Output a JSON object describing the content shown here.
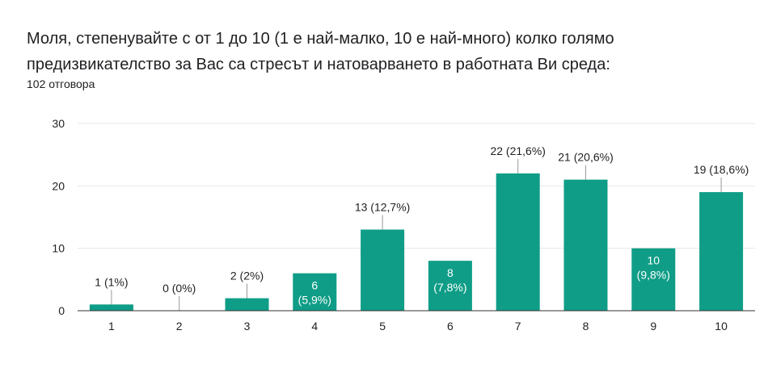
{
  "question": {
    "title": "Моля, степенувайте с от 1 до 10 (1 е най-малко, 10 е най-много) колко голямо предизвикателство за Вас са стресът и натоварването в работната Ви среда:",
    "responses": "102 отговора"
  },
  "colors": {
    "bar": "#0f9d87",
    "grid": "#e6e6e6",
    "axis": "#333333",
    "leader": "#999999"
  },
  "chart_data": {
    "type": "bar",
    "categories": [
      "1",
      "2",
      "3",
      "4",
      "5",
      "6",
      "7",
      "8",
      "9",
      "10"
    ],
    "values": [
      1,
      0,
      2,
      6,
      13,
      8,
      22,
      21,
      10,
      19
    ],
    "value_labels": [
      "1 (1%)",
      "0 (0%)",
      "2 (2%)",
      "6",
      "13 (12,7%)",
      "8",
      "22 (21,6%)",
      "21 (20,6%)",
      "10",
      "19 (18,6%)"
    ],
    "percent_labels": [
      "",
      "",
      "",
      "(5,9%)",
      "",
      "(7,8%)",
      "",
      "",
      "(9,8%)",
      ""
    ],
    "ylim": [
      0,
      30
    ],
    "yticks": [
      0,
      10,
      20,
      30
    ],
    "grid": true,
    "legend": "none"
  }
}
